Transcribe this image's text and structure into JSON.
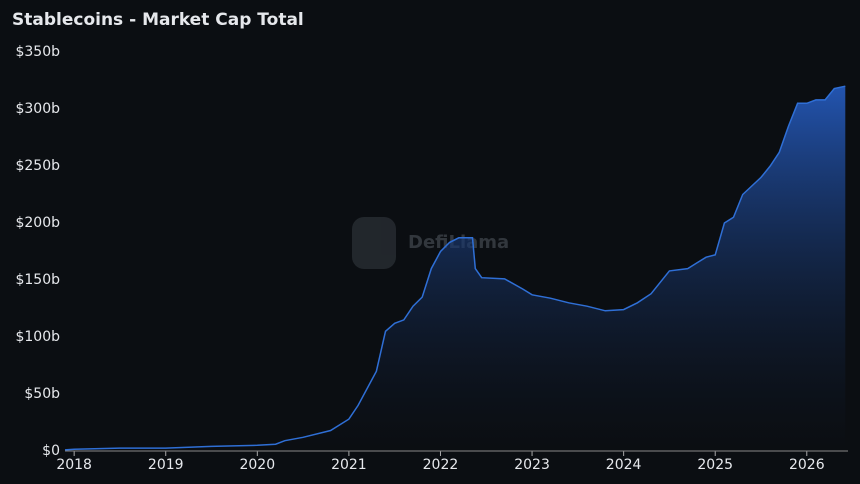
{
  "chart_data": {
    "type": "area",
    "title": "Stablecoins - Market Cap Total",
    "watermark": "DefiLlama",
    "x": [
      2017.9,
      2018.0,
      2018.5,
      2019.0,
      2019.5,
      2020.0,
      2020.2,
      2020.3,
      2020.5,
      2020.8,
      2021.0,
      2021.1,
      2021.3,
      2021.4,
      2021.5,
      2021.6,
      2021.7,
      2021.8,
      2021.9,
      2022.0,
      2022.1,
      2022.2,
      2022.35,
      2022.38,
      2022.45,
      2022.7,
      2022.9,
      2023.0,
      2023.2,
      2023.4,
      2023.6,
      2023.8,
      2024.0,
      2024.15,
      2024.3,
      2024.5,
      2024.7,
      2024.8,
      2024.9,
      2025.0,
      2025.1,
      2025.2,
      2025.3,
      2025.5,
      2025.6,
      2025.7,
      2025.8,
      2025.9,
      2026.0,
      2026.1,
      2026.2,
      2026.3,
      2026.42
    ],
    "series": [
      {
        "color": "#2f6fd6",
        "values": [
          1,
          1.5,
          2.5,
          2.5,
          4,
          5,
          6,
          9,
          12,
          18,
          28,
          40,
          70,
          105,
          112,
          115,
          127,
          135,
          160,
          175,
          183,
          187,
          187,
          160,
          152,
          151,
          142,
          137,
          134,
          130,
          127,
          123,
          124,
          130,
          138,
          158,
          160,
          165,
          170,
          172,
          200,
          205,
          225,
          240,
          250,
          262,
          285,
          305,
          305,
          308,
          308,
          318,
          320
        ]
      }
    ],
    "xlim": [
      2017.9,
      2026.45
    ],
    "xticks": [
      2018,
      2019,
      2020,
      2021,
      2022,
      2023,
      2024,
      2025,
      2026
    ],
    "ylim": [
      0,
      350
    ],
    "yticks": [
      {
        "value": 0,
        "label": "$0"
      },
      {
        "value": 50,
        "label": "$50b"
      },
      {
        "value": 100,
        "label": "$100b"
      },
      {
        "value": 150,
        "label": "$150b"
      },
      {
        "value": 200,
        "label": "$200b"
      },
      {
        "value": 250,
        "label": "$250b"
      },
      {
        "value": 300,
        "label": "$300b"
      },
      {
        "value": 350,
        "label": "$350b"
      }
    ],
    "grid": false
  }
}
